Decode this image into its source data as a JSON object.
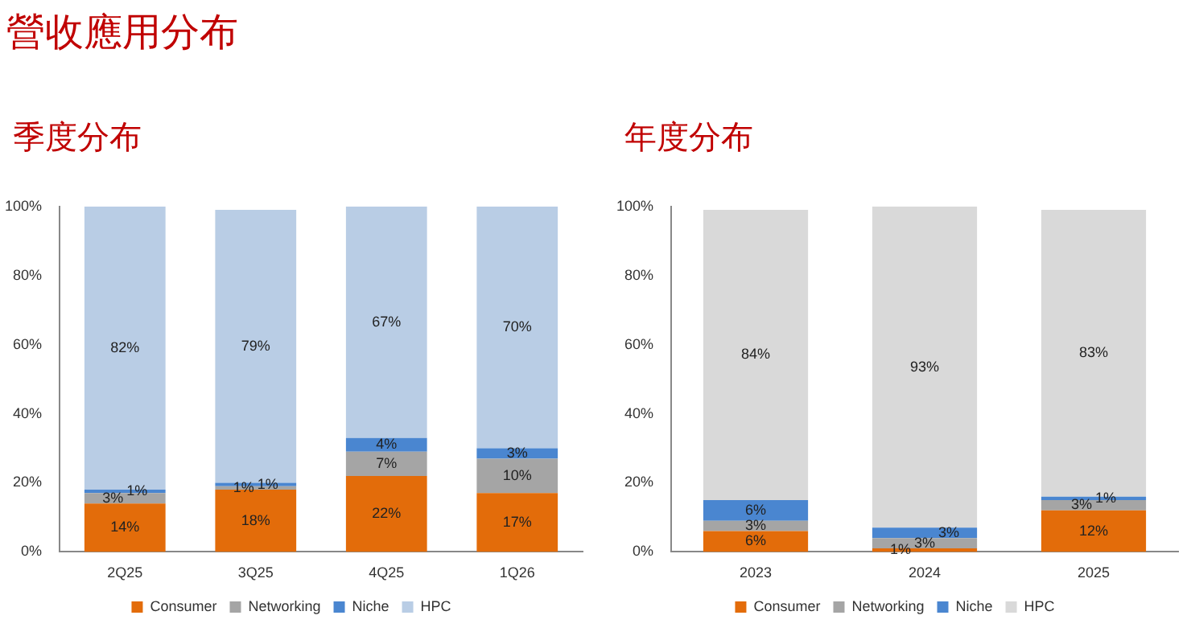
{
  "chart_data": [
    {
      "type": "bar",
      "title": "營收應用分布",
      "subtitle": "季度分布",
      "stacked": true,
      "categories": [
        "2Q25",
        "3Q25",
        "4Q25",
        "1Q26"
      ],
      "ylim": [
        0,
        100
      ],
      "yticks": [
        {
          "value": 0,
          "label": "0%"
        },
        {
          "value": 20,
          "label": "20%"
        },
        {
          "value": 40,
          "label": "40%"
        },
        {
          "value": 60,
          "label": "60%"
        },
        {
          "value": 80,
          "label": "80%"
        },
        {
          "value": 100,
          "label": "100%"
        }
      ],
      "legend": "bottom",
      "grid": false,
      "series": [
        {
          "name": "Consumer",
          "color": "#e36c0a",
          "values": [
            14,
            18,
            22,
            17
          ],
          "value_labels": [
            "14%",
            "18%",
            "22%",
            "17%"
          ]
        },
        {
          "name": "Networking",
          "color": "#a5a5a5",
          "values": [
            3,
            1,
            7,
            10
          ],
          "value_labels": [
            "3%",
            "1%",
            "7%",
            "10%"
          ]
        },
        {
          "name": "Niche",
          "color": "#4a86d0",
          "values": [
            1,
            1,
            4,
            3
          ],
          "value_labels": [
            "1%",
            "1%",
            "4%",
            "3%"
          ]
        },
        {
          "name": "HPC",
          "color": "#b9cde5",
          "values": [
            82,
            79,
            67,
            70
          ],
          "value_labels": [
            "82%",
            "79%",
            "67%",
            "70%"
          ]
        }
      ]
    },
    {
      "type": "bar",
      "title": "年度分布",
      "stacked": true,
      "categories": [
        "2023",
        "2024",
        "2025"
      ],
      "ylim": [
        0,
        100
      ],
      "yticks": [
        {
          "value": 0,
          "label": "0%"
        },
        {
          "value": 20,
          "label": "20%"
        },
        {
          "value": 40,
          "label": "40%"
        },
        {
          "value": 60,
          "label": "60%"
        },
        {
          "value": 80,
          "label": "80%"
        },
        {
          "value": 100,
          "label": "100%"
        }
      ],
      "legend": "bottom",
      "grid": false,
      "series": [
        {
          "name": "Consumer",
          "color": "#e36c0a",
          "values": [
            6,
            1,
            12
          ],
          "value_labels": [
            "6%",
            "1%",
            "12%"
          ]
        },
        {
          "name": "Networking",
          "color": "#a5a5a5",
          "values": [
            3,
            3,
            3
          ],
          "value_labels": [
            "3%",
            "3%",
            "3%"
          ]
        },
        {
          "name": "Niche",
          "color": "#4a86d0",
          "values": [
            6,
            3,
            1
          ],
          "value_labels": [
            "6%",
            "3%",
            "1%"
          ]
        },
        {
          "name": "HPC",
          "color": "#d9d9d9",
          "values": [
            84,
            93,
            83
          ],
          "value_labels": [
            "84%",
            "93%",
            "83%"
          ]
        }
      ]
    }
  ]
}
